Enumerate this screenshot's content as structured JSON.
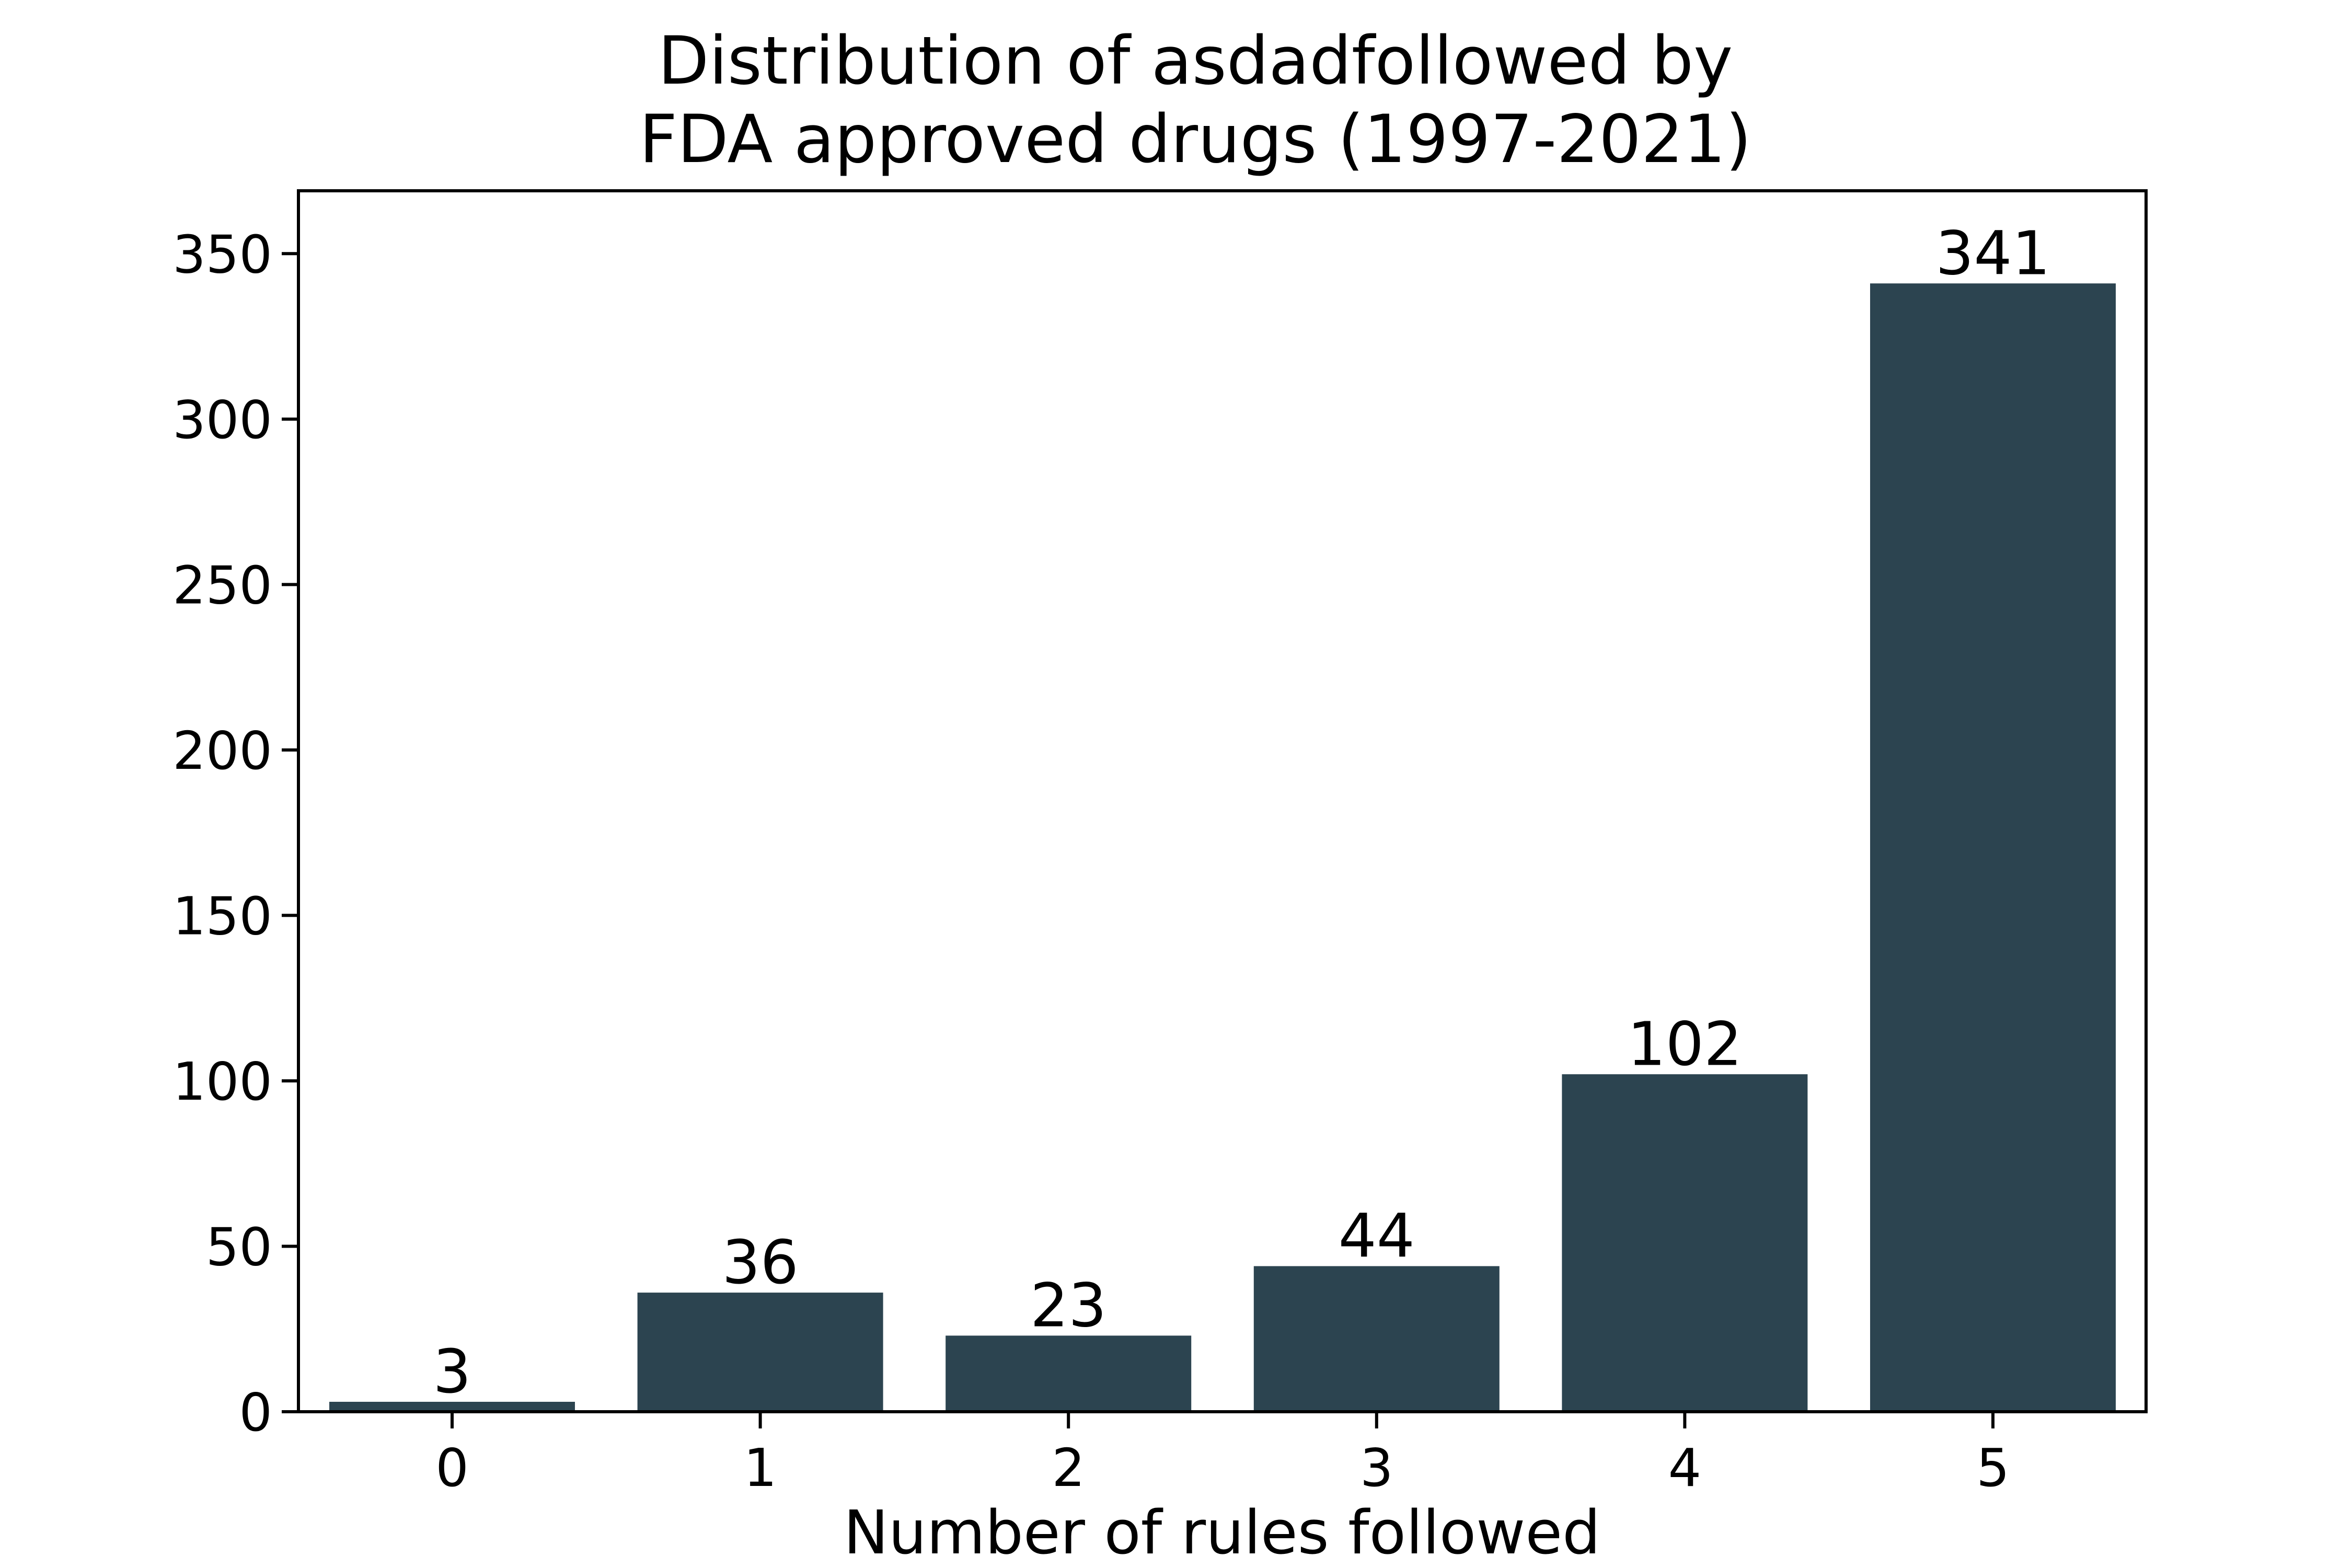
{
  "chart_data": {
    "type": "bar",
    "title_lines": [
      "Distribution of asdadfollowed by",
      "FDA approved drugs (1997-2021)"
    ],
    "xlabel": "Number of rules followed",
    "ylabel": "",
    "categories": [
      "0",
      "1",
      "2",
      "3",
      "4",
      "5"
    ],
    "values": [
      3,
      36,
      23,
      44,
      102,
      341
    ],
    "data_labels": [
      "3",
      "36",
      "23",
      "44",
      "102",
      "341"
    ],
    "yticks": [
      0,
      50,
      100,
      150,
      200,
      250,
      300,
      350
    ],
    "ylim": [
      0,
      369
    ],
    "bar_color": "#2c4450",
    "grid": false,
    "legend": "none"
  }
}
